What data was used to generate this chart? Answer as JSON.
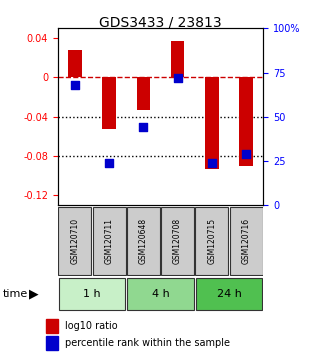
{
  "title": "GDS3433 / 23813",
  "samples": [
    "GSM120710",
    "GSM120711",
    "GSM120648",
    "GSM120708",
    "GSM120715",
    "GSM120716"
  ],
  "log10_ratio": [
    0.028,
    -0.052,
    -0.033,
    0.037,
    -0.093,
    -0.09
  ],
  "percentile_rank": [
    0.68,
    0.24,
    0.44,
    0.72,
    0.24,
    0.29
  ],
  "time_groups": [
    {
      "label": "1 h",
      "cols": [
        0,
        1
      ],
      "color": "#c8f0c8"
    },
    {
      "label": "4 h",
      "cols": [
        2,
        3
      ],
      "color": "#90d890"
    },
    {
      "label": "24 h",
      "cols": [
        4,
        5
      ],
      "color": "#50c050"
    }
  ],
  "ylim_left": [
    -0.13,
    0.05
  ],
  "ylim_right": [
    0,
    100
  ],
  "bar_color": "#cc0000",
  "dot_color": "#0000cc",
  "bar_width": 0.4,
  "dot_size": 40,
  "hline_color_dashed": "#cc0000",
  "hline_color_dotted": "#000000",
  "left_ticks": [
    0.04,
    0,
    -0.04,
    -0.08,
    -0.12
  ],
  "right_ticks": [
    100,
    75,
    50,
    25,
    0
  ],
  "sample_box_color": "#cccccc",
  "sample_box_edge": "#333333",
  "time_label": "time",
  "legend_bar_label": "log10 ratio",
  "legend_dot_label": "percentile rank within the sample"
}
